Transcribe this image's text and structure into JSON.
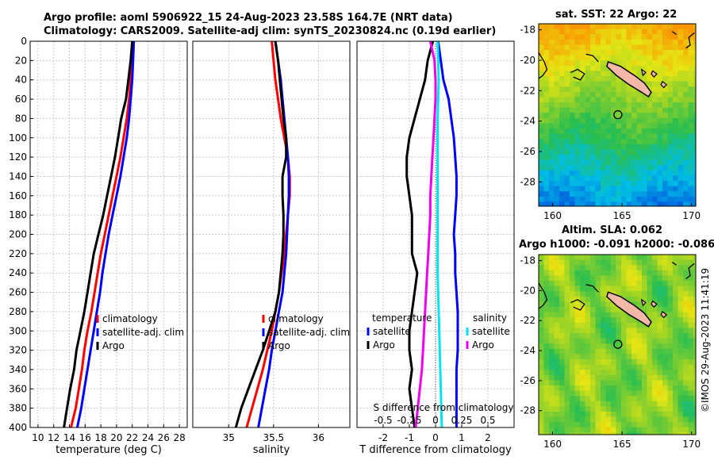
{
  "titles": {
    "line1": "Argo profile: aoml 5906922_15 24-Aug-2023 23.58S 164.7E (NRT data)",
    "line2": "Climatology: CARS2009. Satellite-adj clim: synTS_20230824.nc (0.19d earlier)",
    "map_sst": "sat. SST: 22 Argo: 22",
    "map_sla_line1": "Altim. SLA: 0.062",
    "map_sla_line2": "Argo h1000: -0.091 h2000: -0.086"
  },
  "footer": "©IMOS 29-Aug-2023 11:41:19",
  "colors": {
    "argo": "#000000",
    "climatology": "#ff0000",
    "satellite": "#0000ff",
    "sat_salinity": "#00e5ee",
    "argo_salinity": "#ee00ee",
    "land": "#f4b8a8"
  },
  "chart_data": [
    {
      "type": "line",
      "name": "temperature-panel",
      "xlabel": "temperature (deg C)",
      "xlim": [
        9,
        29
      ],
      "xticks": [
        10,
        12,
        14,
        16,
        18,
        20,
        22,
        24,
        26,
        28
      ],
      "ylim": [
        0,
        400
      ],
      "yticks": [
        0,
        20,
        40,
        60,
        80,
        100,
        120,
        140,
        160,
        180,
        200,
        220,
        240,
        260,
        280,
        300,
        320,
        340,
        360,
        380,
        400
      ],
      "legend": [
        "climatology",
        "satellite-adj. clim",
        "Argo"
      ],
      "series": [
        {
          "name": "climatology",
          "color": "#ff0000",
          "points": [
            [
              22.1,
              0
            ],
            [
              22.0,
              20
            ],
            [
              21.8,
              40
            ],
            [
              21.6,
              60
            ],
            [
              21.3,
              80
            ],
            [
              20.9,
              100
            ],
            [
              20.5,
              120
            ],
            [
              20.0,
              140
            ],
            [
              19.5,
              160
            ],
            [
              19.0,
              180
            ],
            [
              18.5,
              200
            ],
            [
              18.0,
              220
            ],
            [
              17.6,
              240
            ],
            [
              17.2,
              260
            ],
            [
              16.8,
              280
            ],
            [
              16.3,
              300
            ],
            [
              15.9,
              320
            ],
            [
              15.6,
              340
            ],
            [
              15.2,
              360
            ],
            [
              14.8,
              380
            ],
            [
              14.2,
              400
            ]
          ]
        },
        {
          "name": "satellite-adj. clim",
          "color": "#0000ff",
          "points": [
            [
              22.2,
              0
            ],
            [
              22.1,
              20
            ],
            [
              22.0,
              40
            ],
            [
              21.8,
              60
            ],
            [
              21.6,
              80
            ],
            [
              21.3,
              100
            ],
            [
              20.9,
              120
            ],
            [
              20.5,
              140
            ],
            [
              20.0,
              160
            ],
            [
              19.5,
              180
            ],
            [
              19.0,
              200
            ],
            [
              18.6,
              220
            ],
            [
              18.2,
              240
            ],
            [
              17.9,
              260
            ],
            [
              17.5,
              280
            ],
            [
              17.1,
              300
            ],
            [
              16.7,
              320
            ],
            [
              16.3,
              340
            ],
            [
              15.9,
              360
            ],
            [
              15.5,
              380
            ],
            [
              15.0,
              400
            ]
          ]
        },
        {
          "name": "Argo",
          "color": "#000000",
          "points": [
            [
              22.0,
              0
            ],
            [
              21.8,
              20
            ],
            [
              21.5,
              40
            ],
            [
              21.2,
              60
            ],
            [
              20.6,
              80
            ],
            [
              20.2,
              100
            ],
            [
              19.8,
              120
            ],
            [
              19.3,
              140
            ],
            [
              18.8,
              160
            ],
            [
              18.3,
              180
            ],
            [
              17.7,
              200
            ],
            [
              17.1,
              220
            ],
            [
              16.7,
              240
            ],
            [
              16.3,
              260
            ],
            [
              15.9,
              280
            ],
            [
              15.4,
              300
            ],
            [
              14.9,
              320
            ],
            [
              14.6,
              340
            ],
            [
              14.1,
              360
            ],
            [
              13.7,
              380
            ],
            [
              13.3,
              400
            ]
          ]
        }
      ]
    },
    {
      "type": "line",
      "name": "salinity-panel",
      "xlabel": "salinity",
      "xlim": [
        34.6,
        36.35
      ],
      "xticks": [
        35,
        35.5,
        36
      ],
      "ylim": [
        0,
        400
      ],
      "legend": [
        "climatology",
        "satellite-adj. clim",
        "Argo"
      ],
      "series": [
        {
          "name": "climatology",
          "color": "#ff0000",
          "points": [
            [
              35.48,
              0
            ],
            [
              35.5,
              20
            ],
            [
              35.52,
              40
            ],
            [
              35.55,
              60
            ],
            [
              35.58,
              80
            ],
            [
              35.62,
              100
            ],
            [
              35.66,
              120
            ],
            [
              35.68,
              140
            ],
            [
              35.68,
              160
            ],
            [
              35.66,
              180
            ],
            [
              35.64,
              200
            ],
            [
              35.62,
              220
            ],
            [
              35.59,
              240
            ],
            [
              35.56,
              260
            ],
            [
              35.52,
              280
            ],
            [
              35.48,
              300
            ],
            [
              35.43,
              320
            ],
            [
              35.38,
              340
            ],
            [
              35.32,
              360
            ],
            [
              35.26,
              380
            ],
            [
              35.2,
              400
            ]
          ]
        },
        {
          "name": "satellite-adj. clim",
          "color": "#0000ff",
          "points": [
            [
              35.52,
              0
            ],
            [
              35.55,
              20
            ],
            [
              35.58,
              40
            ],
            [
              35.6,
              60
            ],
            [
              35.62,
              80
            ],
            [
              35.64,
              100
            ],
            [
              35.66,
              120
            ],
            [
              35.67,
              140
            ],
            [
              35.67,
              160
            ],
            [
              35.66,
              180
            ],
            [
              35.65,
              200
            ],
            [
              35.64,
              220
            ],
            [
              35.62,
              240
            ],
            [
              35.6,
              260
            ],
            [
              35.56,
              280
            ],
            [
              35.52,
              300
            ],
            [
              35.48,
              320
            ],
            [
              35.45,
              340
            ],
            [
              35.41,
              360
            ],
            [
              35.37,
              380
            ],
            [
              35.33,
              400
            ]
          ]
        },
        {
          "name": "Argo",
          "color": "#000000",
          "points": [
            [
              35.52,
              0
            ],
            [
              35.55,
              20
            ],
            [
              35.57,
              40
            ],
            [
              35.59,
              60
            ],
            [
              35.61,
              80
            ],
            [
              35.64,
              100
            ],
            [
              35.64,
              120
            ],
            [
              35.6,
              140
            ],
            [
              35.6,
              160
            ],
            [
              35.61,
              180
            ],
            [
              35.61,
              200
            ],
            [
              35.6,
              220
            ],
            [
              35.58,
              240
            ],
            [
              35.56,
              260
            ],
            [
              35.52,
              280
            ],
            [
              35.45,
              300
            ],
            [
              35.38,
              320
            ],
            [
              35.3,
              340
            ],
            [
              35.22,
              360
            ],
            [
              35.14,
              380
            ],
            [
              35.08,
              400
            ]
          ]
        }
      ]
    },
    {
      "type": "line",
      "name": "difference-panel",
      "xlabel": "T difference from climatology",
      "xlabel_top": "S difference from climatology",
      "xlim": [
        -3,
        3
      ],
      "xticks": [
        -2,
        -1,
        0,
        1,
        2
      ],
      "xticks_top_values": [
        -0.5,
        -0.25,
        0,
        0.25,
        0.5
      ],
      "xticks_top": [
        "-0.5",
        "-0.25",
        "0",
        "0.25",
        "0.5"
      ],
      "ylim": [
        0,
        400
      ],
      "legend_left_title": "temperature",
      "legend_right_title": "salinity",
      "legend_left": [
        "satellite",
        "Argo"
      ],
      "legend_right": [
        "satellite",
        "Argo"
      ],
      "series": [
        {
          "name": "temperature satellite",
          "color": "#0000ff",
          "points": [
            [
              0.1,
              0
            ],
            [
              0.2,
              20
            ],
            [
              0.3,
              40
            ],
            [
              0.5,
              60
            ],
            [
              0.6,
              80
            ],
            [
              0.7,
              100
            ],
            [
              0.75,
              120
            ],
            [
              0.8,
              140
            ],
            [
              0.8,
              160
            ],
            [
              0.75,
              180
            ],
            [
              0.7,
              200
            ],
            [
              0.75,
              220
            ],
            [
              0.75,
              240
            ],
            [
              0.8,
              260
            ],
            [
              0.85,
              280
            ],
            [
              0.85,
              300
            ],
            [
              0.85,
              320
            ],
            [
              0.8,
              340
            ],
            [
              0.8,
              360
            ],
            [
              0.8,
              380
            ],
            [
              0.8,
              400
            ]
          ]
        },
        {
          "name": "temperature Argo",
          "color": "#000000",
          "points": [
            [
              -0.1,
              0
            ],
            [
              -0.3,
              20
            ],
            [
              -0.4,
              40
            ],
            [
              -0.6,
              60
            ],
            [
              -0.8,
              80
            ],
            [
              -1.0,
              100
            ],
            [
              -1.1,
              120
            ],
            [
              -1.1,
              140
            ],
            [
              -1.0,
              160
            ],
            [
              -0.9,
              180
            ],
            [
              -0.9,
              200
            ],
            [
              -0.9,
              220
            ],
            [
              -0.7,
              240
            ],
            [
              -0.8,
              260
            ],
            [
              -0.9,
              280
            ],
            [
              -1.0,
              300
            ],
            [
              -1.0,
              320
            ],
            [
              -0.9,
              340
            ],
            [
              -1.0,
              360
            ],
            [
              -0.9,
              380
            ],
            [
              -0.8,
              400
            ]
          ]
        },
        {
          "name": "salinity satellite",
          "color": "#00e5ee",
          "points": [
            [
              0.02,
              0
            ],
            [
              0.03,
              40
            ],
            [
              0.02,
              80
            ],
            [
              0.02,
              120
            ],
            [
              0.02,
              160
            ],
            [
              0.02,
              200
            ],
            [
              0.02,
              240
            ],
            [
              0.03,
              280
            ],
            [
              0.04,
              320
            ],
            [
              0.05,
              360
            ],
            [
              0.06,
              400
            ]
          ]
        },
        {
          "name": "salinity Argo",
          "color": "#ee00ee",
          "points": [
            [
              -0.05,
              0
            ],
            [
              -0.01,
              20
            ],
            [
              0.0,
              40
            ],
            [
              0.0,
              60
            ],
            [
              -0.01,
              80
            ],
            [
              -0.02,
              100
            ],
            [
              -0.03,
              120
            ],
            [
              -0.04,
              140
            ],
            [
              -0.05,
              160
            ],
            [
              -0.05,
              180
            ],
            [
              -0.06,
              200
            ],
            [
              -0.07,
              220
            ],
            [
              -0.08,
              240
            ],
            [
              -0.09,
              260
            ],
            [
              -0.1,
              280
            ],
            [
              -0.11,
              300
            ],
            [
              -0.12,
              320
            ],
            [
              -0.13,
              340
            ],
            [
              -0.15,
              360
            ],
            [
              -0.17,
              380
            ],
            [
              -0.19,
              400
            ]
          ]
        }
      ]
    },
    {
      "type": "heatmap",
      "name": "sst-map",
      "xlim": [
        159,
        170.3
      ],
      "ylim": [
        -29.6,
        -17.6
      ],
      "xticks": [
        160,
        165,
        170
      ],
      "yticks": [
        -18,
        -20,
        -22,
        -24,
        -26,
        -28
      ],
      "argo_position": [
        164.7,
        -23.58
      ]
    },
    {
      "type": "heatmap",
      "name": "sla-map",
      "xlim": [
        159,
        170.3
      ],
      "ylim": [
        -29.6,
        -17.6
      ],
      "xticks": [
        160,
        165,
        170
      ],
      "yticks": [
        -18,
        -20,
        -22,
        -24,
        -26,
        -28
      ],
      "argo_position": [
        164.7,
        -23.58
      ]
    }
  ]
}
